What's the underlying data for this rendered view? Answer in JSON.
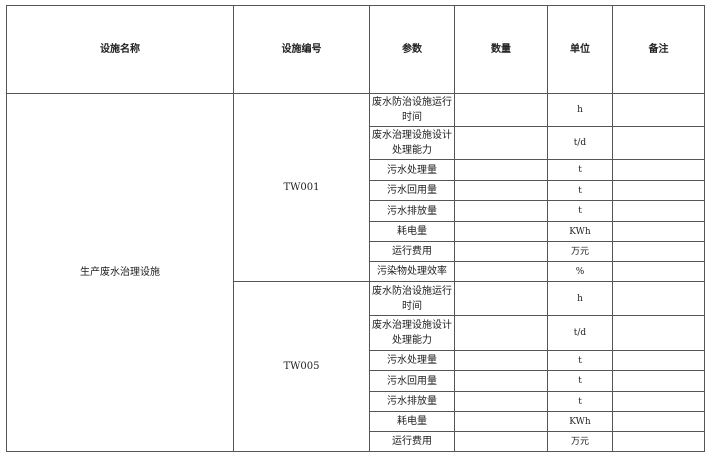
{
  "headers": [
    "设施名称",
    "设施编号",
    "参数",
    "数量",
    "单位",
    "备注"
  ],
  "facility_name": "生产废水治理设施",
  "groups": [
    {
      "code": "TW001",
      "rows": [
        {
          "param": "废水防治设施运行时间",
          "unit": "h"
        },
        {
          "param": "废水治理设施设计处理能力",
          "unit": "t/d"
        },
        {
          "param": "污水处理量",
          "unit": "t"
        },
        {
          "param": "污水回用量",
          "unit": "t"
        },
        {
          "param": "污水排放量",
          "unit": "t"
        },
        {
          "param": "耗电量",
          "unit": "KWh"
        },
        {
          "param": "运行费用",
          "unit": "万元"
        },
        {
          "param": "污染物处理效率",
          "unit": "%"
        }
      ]
    },
    {
      "code": "TW005",
      "rows": [
        {
          "param": "废水防治设施运行时间",
          "unit": "h"
        },
        {
          "param": "废水治理设施设计处理能力",
          "unit": "t/d"
        },
        {
          "param": "污水处理量",
          "unit": "t"
        },
        {
          "param": "污水回用量",
          "unit": "t"
        },
        {
          "param": "污水排放量",
          "unit": "t"
        },
        {
          "param": "耗电量",
          "unit": "KWh"
        },
        {
          "param": "运行费用",
          "unit": "万元"
        }
      ]
    }
  ]
}
